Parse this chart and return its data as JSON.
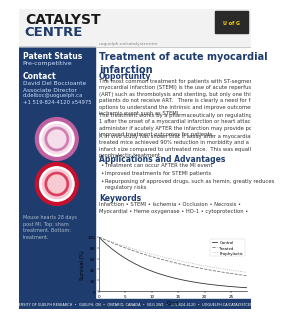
{
  "logo1": "CATALYST",
  "logo2": "CENTRE",
  "website": "uoguelph.ca/catalystcentre",
  "univ_box_color": "#2a2a2a",
  "sidebar_color": "#1e3d6e",
  "header_line_color": "#cccccc",
  "title": "Treatment of acute myocardial\ninfarction",
  "title_color": "#1e3d6e",
  "opp_header": "Opportunity",
  "opp_color": "#1e3d6e",
  "opp_p1": "The most common treatment for patients with ST-segment elevation\nmyocardial infarction (STEMI) is the use of acute reperfusion therapy\n(ART) such as thrombolysis and stenting, but only one third of STEMI\npatients do not receive ART.   There is clearly a need for further treatment\noptions to understand the intrinsic and improve outcomes after an\nischemic event such as STEMI.",
  "opp_p2": "The treatment works by a pharmaceutically on regulating heme oxygenase-\n1 after the onset of a myocardial infarction or heart attack.  The ability to\nadminister if acutely AFTER the infarction may provide possible\nimproved treatment outcomes for patients.",
  "opp_p3": "A in vivo study has shown that if assay after a myocardial infarction,\ntreated mice achieved 90% reduction in morbidity and a 20% reduction in\ninfarct size compared to untreated mice.  This was equally as effective as\nprophylactic treatment.",
  "apps_header": "Applications and Advantages",
  "apps_bullets": [
    "Treatment can occur AFTER the MI event",
    "Improved treatments for STEMI patients",
    "Repurposing of approved drugs, such as hemin, greatly reduces\nregulatory risks"
  ],
  "kw_header": "Keywords",
  "kw_line1": "Infarction • STEMI • Ischemia • Occlusion • Necrosis •",
  "kw_line2": "Myocardial • Heme oxygenase • HO-1 • cytoprotection •",
  "sb_patent": "Patent Status",
  "sb_precomp": "Pre-competitive",
  "sb_contact": "Contact",
  "sb_name": "David Del Boccioante\nAssociate Director",
  "sb_email": "d.delboc@uoguelph.ca\n+1 519-824-4120 x54975",
  "sb_footnote": "Mouse hearts 28 days\npost MI. Top: sham\ntreatment. Bottom:\ntreatment.",
  "footer_text": "UNIVERSITY OF GUELPH RESEARCH  •  GUELPH, ON  •  ONTARIO, CANADA  •  N1G 2W1  •  519-824-4120  •  UOGUELPH.CA/CATALYSTCENTRE",
  "footer_color": "#1e3d6e",
  "ring1_outer": "#c060a0",
  "ring1_inner": "#d080b0",
  "ring2_outer": "#c8102e",
  "ring2_inner": "#e04060",
  "bg": "#ffffff",
  "text_color": "#333333",
  "small_text_color": "#555555"
}
